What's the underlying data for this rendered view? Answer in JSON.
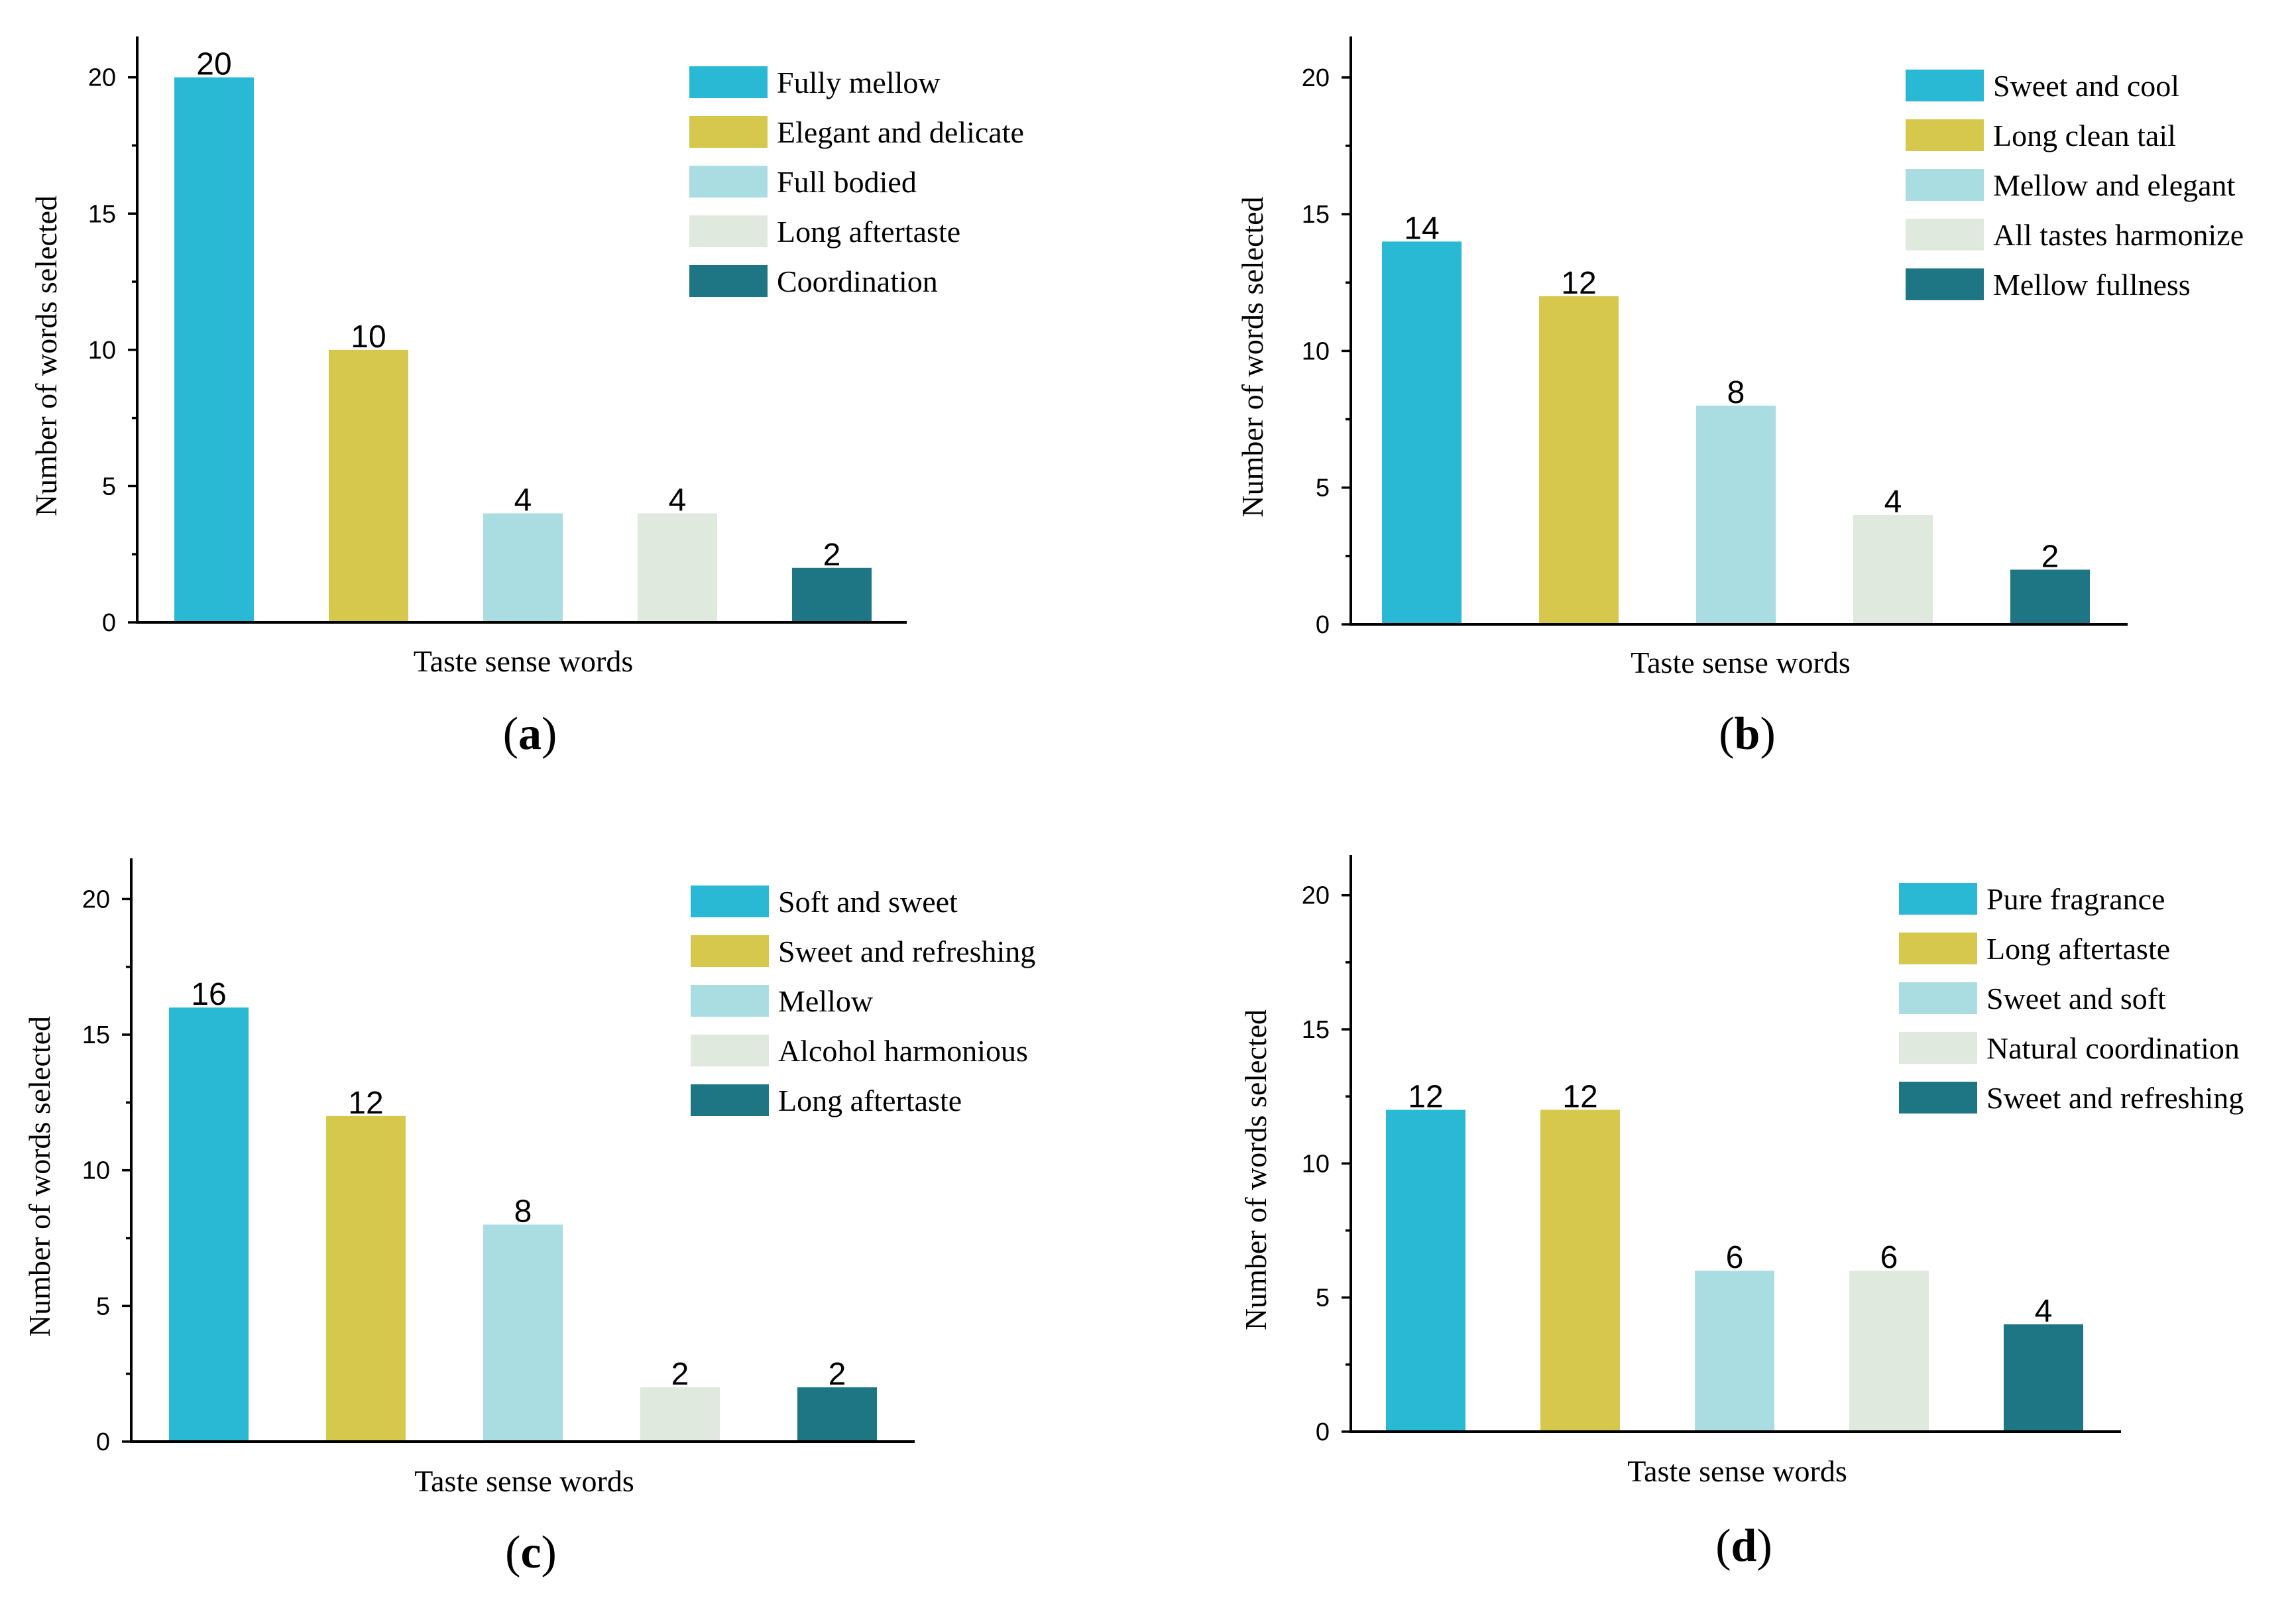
{
  "colors": [
    "#29b9d5",
    "#d6c84d",
    "#a9dde1",
    "#e0e9dd",
    "#1e7685"
  ],
  "chart_data": [
    {
      "type": "bar",
      "panel": "a",
      "xlabel": "Taste sense words",
      "ylabel": "Number of words selected",
      "ylim": [
        0,
        21.5
      ],
      "yticks": [
        0,
        5,
        10,
        15,
        20
      ],
      "categories": [
        "Fully mellow",
        "Elegant and delicate",
        "Full bodied",
        "Long aftertaste",
        "Coordination"
      ],
      "values": [
        20,
        10,
        4,
        4,
        2
      ],
      "legend": "top-right"
    },
    {
      "type": "bar",
      "panel": "b",
      "xlabel": "Taste sense words",
      "ylabel": "Number of words selected",
      "ylim": [
        0,
        21.5
      ],
      "yticks": [
        0,
        5,
        10,
        15,
        20
      ],
      "categories": [
        "Sweet and cool",
        "Long clean tail",
        "Mellow and elegant",
        "All tastes harmonize",
        "Mellow fullness"
      ],
      "values": [
        14,
        12,
        8,
        4,
        2
      ],
      "legend": "top-right"
    },
    {
      "type": "bar",
      "panel": "c",
      "xlabel": "Taste sense words",
      "ylabel": "Number of words selected",
      "ylim": [
        0,
        21.5
      ],
      "yticks": [
        0,
        5,
        10,
        15,
        20
      ],
      "categories": [
        "Soft and sweet",
        "Sweet and refreshing",
        "Mellow",
        "Alcohol harmonious",
        "Long aftertaste"
      ],
      "values": [
        16,
        12,
        8,
        2,
        2
      ],
      "legend": "top-right"
    },
    {
      "type": "bar",
      "panel": "d",
      "xlabel": "Taste sense words",
      "ylabel": "Number of words selected",
      "ylim": [
        0,
        21.5
      ],
      "yticks": [
        0,
        5,
        10,
        15,
        20
      ],
      "categories": [
        "Pure fragrance",
        "Long aftertaste",
        "Sweet and soft",
        "Natural coordination",
        "Sweet and refreshing"
      ],
      "values": [
        12,
        12,
        6,
        6,
        4
      ],
      "legend": "top-right"
    }
  ]
}
